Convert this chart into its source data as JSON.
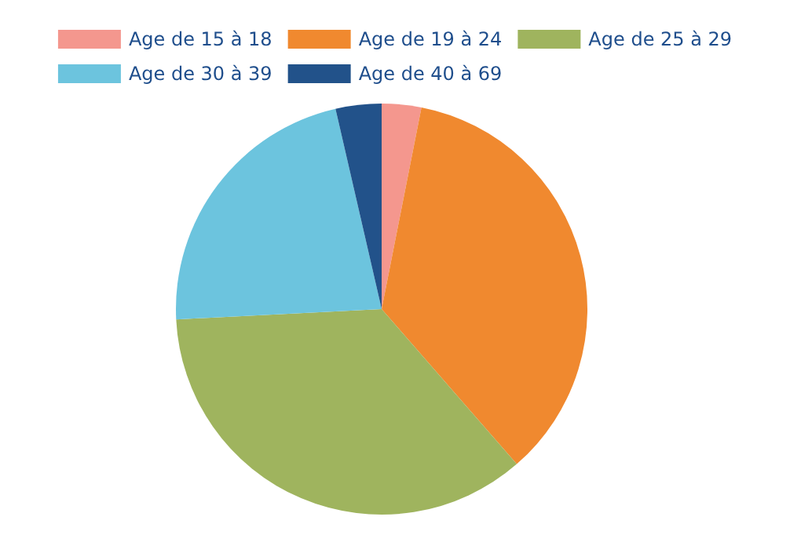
{
  "chart_data": {
    "type": "pie",
    "categories": [
      "Age de 15 à 18",
      "Age de 19 à 24",
      "Age de 25 à 29",
      "Age de 30 à 39",
      "Age de 40 à 69"
    ],
    "values": [
      3.1,
      35.5,
      35.6,
      22.2,
      3.6
    ],
    "colors": [
      "#f4978e",
      "#f0892f",
      "#9fb45e",
      "#6cc4de",
      "#22528a"
    ],
    "legend": "top"
  }
}
